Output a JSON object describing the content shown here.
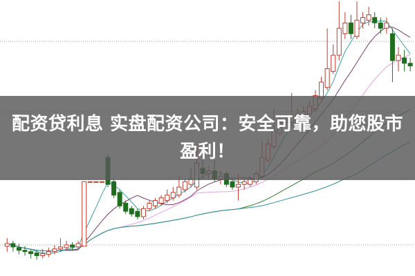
{
  "headline": "配资贷利息 实盘配资公司：安全可靠，助您股市盈利！",
  "chart_data": {
    "type": "candlestick",
    "title": "",
    "xlabel": "",
    "ylabel": "",
    "grid": true,
    "note_units": "relative price (estimated; axes not shown)",
    "ylim": [
      0,
      100
    ],
    "colors": {
      "up": "#c0392b",
      "down": "#1f6e1f",
      "ma5": "#3aa0a0",
      "ma10": "#7a3a6a",
      "ma20": "#e6a0e6",
      "ma60": "#2f7f2f",
      "ma120": "#2f8f9f",
      "banner": "#585858"
    },
    "moving_averages": [
      5,
      10,
      20,
      40,
      60
    ],
    "candles": [
      {
        "o": 9,
        "h": 12,
        "l": 7,
        "c": 10
      },
      {
        "o": 10,
        "h": 11,
        "l": 7,
        "c": 8.75
      },
      {
        "o": 8.5,
        "h": 10,
        "l": 6,
        "c": 7.5
      },
      {
        "o": 7.5,
        "h": 9,
        "l": 5.5,
        "c": 7
      },
      {
        "o": 7,
        "h": 8,
        "l": 4.5,
        "c": 6.25
      },
      {
        "o": 6.5,
        "h": 7.5,
        "l": 4,
        "c": 5.5
      },
      {
        "o": 5.5,
        "h": 8,
        "l": 4.5,
        "c": 6.25
      },
      {
        "o": 6,
        "h": 8.5,
        "l": 5,
        "c": 7
      },
      {
        "o": 7,
        "h": 9.5,
        "l": 6,
        "c": 8
      },
      {
        "o": 8,
        "h": 12,
        "l": 7,
        "c": 8.75
      },
      {
        "o": 8.5,
        "h": 11,
        "l": 7.5,
        "c": 9.5
      },
      {
        "o": 9.5,
        "h": 10.5,
        "l": 7.5,
        "c": 8.75
      },
      {
        "o": 8.75,
        "h": 11,
        "l": 8,
        "c": 10
      },
      {
        "o": 9,
        "h": 33,
        "l": 9,
        "c": 33
      },
      {
        "o": 33,
        "h": 33,
        "l": 33,
        "c": 33
      },
      {
        "o": 33,
        "h": 33,
        "l": 33,
        "c": 33
      },
      {
        "o": 33,
        "h": 33,
        "l": 33,
        "c": 33
      },
      {
        "o": 42,
        "h": 43,
        "l": 31,
        "c": 32
      },
      {
        "o": 33,
        "h": 34,
        "l": 27,
        "c": 28
      },
      {
        "o": 29,
        "h": 30,
        "l": 23,
        "c": 24
      },
      {
        "o": 25,
        "h": 26,
        "l": 21,
        "c": 22
      },
      {
        "o": 23,
        "h": 24,
        "l": 20,
        "c": 21
      },
      {
        "o": 22,
        "h": 23,
        "l": 19,
        "c": 20
      },
      {
        "o": 20,
        "h": 24,
        "l": 19,
        "c": 23
      },
      {
        "o": 23,
        "h": 26,
        "l": 22,
        "c": 25
      },
      {
        "o": 24,
        "h": 27,
        "l": 23,
        "c": 26
      },
      {
        "o": 25,
        "h": 28,
        "l": 24,
        "c": 27
      },
      {
        "o": 26,
        "h": 30,
        "l": 25,
        "c": 28
      },
      {
        "o": 27,
        "h": 31,
        "l": 26,
        "c": 29
      },
      {
        "o": 28,
        "h": 35,
        "l": 27,
        "c": 31
      },
      {
        "o": 30,
        "h": 34,
        "l": 29,
        "c": 33
      },
      {
        "o": 32,
        "h": 38,
        "l": 31,
        "c": 34
      },
      {
        "o": 31,
        "h": 47,
        "l": 30,
        "c": 40
      },
      {
        "o": 38,
        "h": 41,
        "l": 34,
        "c": 36
      },
      {
        "o": 36,
        "h": 39,
        "l": 34,
        "c": 37
      },
      {
        "o": 37,
        "h": 41,
        "l": 33,
        "c": 34
      },
      {
        "o": 34,
        "h": 37,
        "l": 32,
        "c": 35
      },
      {
        "o": 36,
        "h": 37,
        "l": 31,
        "c": 32
      },
      {
        "o": 33,
        "h": 34,
        "l": 30,
        "c": 31
      },
      {
        "o": 31,
        "h": 36,
        "l": 26,
        "c": 32
      },
      {
        "o": 32,
        "h": 34,
        "l": 30,
        "c": 33
      },
      {
        "o": 32,
        "h": 35,
        "l": 31,
        "c": 34
      },
      {
        "o": 33,
        "h": 37,
        "l": 32,
        "c": 36
      },
      {
        "o": 35,
        "h": 48,
        "l": 34,
        "c": 42
      },
      {
        "o": 41,
        "h": 49,
        "l": 40,
        "c": 47
      },
      {
        "o": 46,
        "h": 60,
        "l": 45,
        "c": 52
      },
      {
        "o": 51,
        "h": 57,
        "l": 50,
        "c": 55
      },
      {
        "o": 55,
        "h": 58,
        "l": 53,
        "c": 56
      },
      {
        "o": 55,
        "h": 66,
        "l": 54,
        "c": 57
      },
      {
        "o": 56,
        "h": 60,
        "l": 55,
        "c": 58
      },
      {
        "o": 57,
        "h": 61,
        "l": 56,
        "c": 59
      },
      {
        "o": 58,
        "h": 63,
        "l": 57,
        "c": 61
      },
      {
        "o": 60,
        "h": 67,
        "l": 59,
        "c": 65
      },
      {
        "o": 64,
        "h": 72,
        "l": 63,
        "c": 70
      },
      {
        "o": 68,
        "h": 90,
        "l": 67,
        "c": 75
      },
      {
        "o": 74,
        "h": 84,
        "l": 73,
        "c": 80
      },
      {
        "o": 80,
        "h": 100,
        "l": 78,
        "c": 90
      },
      {
        "o": 88,
        "h": 96,
        "l": 86,
        "c": 92
      },
      {
        "o": 92,
        "h": 95,
        "l": 86,
        "c": 88
      },
      {
        "o": 87,
        "h": 100,
        "l": 86,
        "c": 93
      },
      {
        "o": 92,
        "h": 96,
        "l": 90,
        "c": 94
      },
      {
        "o": 93,
        "h": 98,
        "l": 91,
        "c": 95
      },
      {
        "o": 94,
        "h": 96,
        "l": 90,
        "c": 92
      },
      {
        "o": 92,
        "h": 94,
        "l": 88,
        "c": 90
      },
      {
        "o": 90,
        "h": 94,
        "l": 88,
        "c": 92
      },
      {
        "o": 88,
        "h": 90,
        "l": 70,
        "c": 78
      },
      {
        "o": 78,
        "h": 83,
        "l": 74,
        "c": 80
      },
      {
        "o": 79,
        "h": 82,
        "l": 74,
        "c": 77
      },
      {
        "o": 77,
        "h": 79,
        "l": 74,
        "c": 76
      }
    ]
  }
}
